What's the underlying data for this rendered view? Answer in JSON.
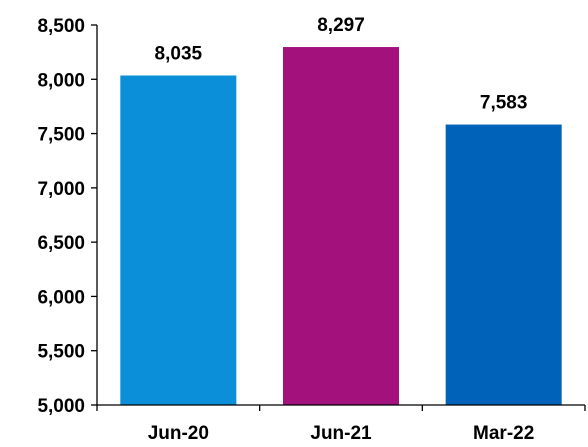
{
  "chart_data": {
    "type": "bar",
    "title": "",
    "xlabel": "",
    "ylabel": "",
    "categories": [
      "Jun-20",
      "Jun-21",
      "Mar-22"
    ],
    "values": [
      8035,
      8297,
      7583
    ],
    "data_labels": [
      "8,035",
      "8,297",
      "7,583"
    ],
    "bar_colors": [
      "#0A8FD8",
      "#A3117C",
      "#0062B8"
    ],
    "ylim": [
      5000,
      8500
    ],
    "yticks": [
      5000,
      5500,
      6000,
      6500,
      7000,
      7500,
      8000,
      8500
    ],
    "ytick_labels": [
      "5,000",
      "5,500",
      "6,000",
      "6,500",
      "7,000",
      "7,500",
      "8,000",
      "8,500"
    ],
    "grid": false,
    "legend": "none"
  }
}
